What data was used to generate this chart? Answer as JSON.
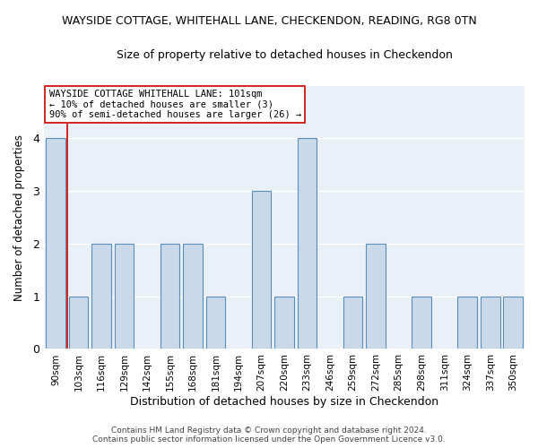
{
  "title_line1": "WAYSIDE COTTAGE, WHITEHALL LANE, CHECKENDON, READING, RG8 0TN",
  "title_line2": "Size of property relative to detached houses in Checkendon",
  "xlabel": "Distribution of detached houses by size in Checkendon",
  "ylabel": "Number of detached properties",
  "categories": [
    "90sqm",
    "103sqm",
    "116sqm",
    "129sqm",
    "142sqm",
    "155sqm",
    "168sqm",
    "181sqm",
    "194sqm",
    "207sqm",
    "220sqm",
    "233sqm",
    "246sqm",
    "259sqm",
    "272sqm",
    "285sqm",
    "298sqm",
    "311sqm",
    "324sqm",
    "337sqm",
    "350sqm"
  ],
  "values": [
    4,
    1,
    2,
    2,
    0,
    2,
    2,
    1,
    0,
    3,
    1,
    4,
    0,
    1,
    2,
    0,
    1,
    0,
    1,
    1,
    1
  ],
  "bar_color": "#c9d9ea",
  "bar_edge_color": "#5b8db8",
  "vline_color": "#cc0000",
  "ylim": [
    0,
    5
  ],
  "yticks": [
    0,
    1,
    2,
    3,
    4,
    5
  ],
  "annotation_line1": "WAYSIDE COTTAGE WHITEHALL LANE: 101sqm",
  "annotation_line2": "← 10% of detached houses are smaller (3)",
  "annotation_line3": "90% of semi-detached houses are larger (26) →",
  "annotation_box_color": "#ffffff",
  "annotation_box_edge": "#cc0000",
  "footer_line1": "Contains HM Land Registry data © Crown copyright and database right 2024.",
  "footer_line2": "Contains public sector information licensed under the Open Government Licence v3.0.",
  "background_color": "#ffffff",
  "plot_background": "#eaf0f7",
  "grid_color": "#ffffff",
  "title1_fontsize": 9,
  "title2_fontsize": 9,
  "bar_width": 0.85,
  "vline_bar_index": 1
}
